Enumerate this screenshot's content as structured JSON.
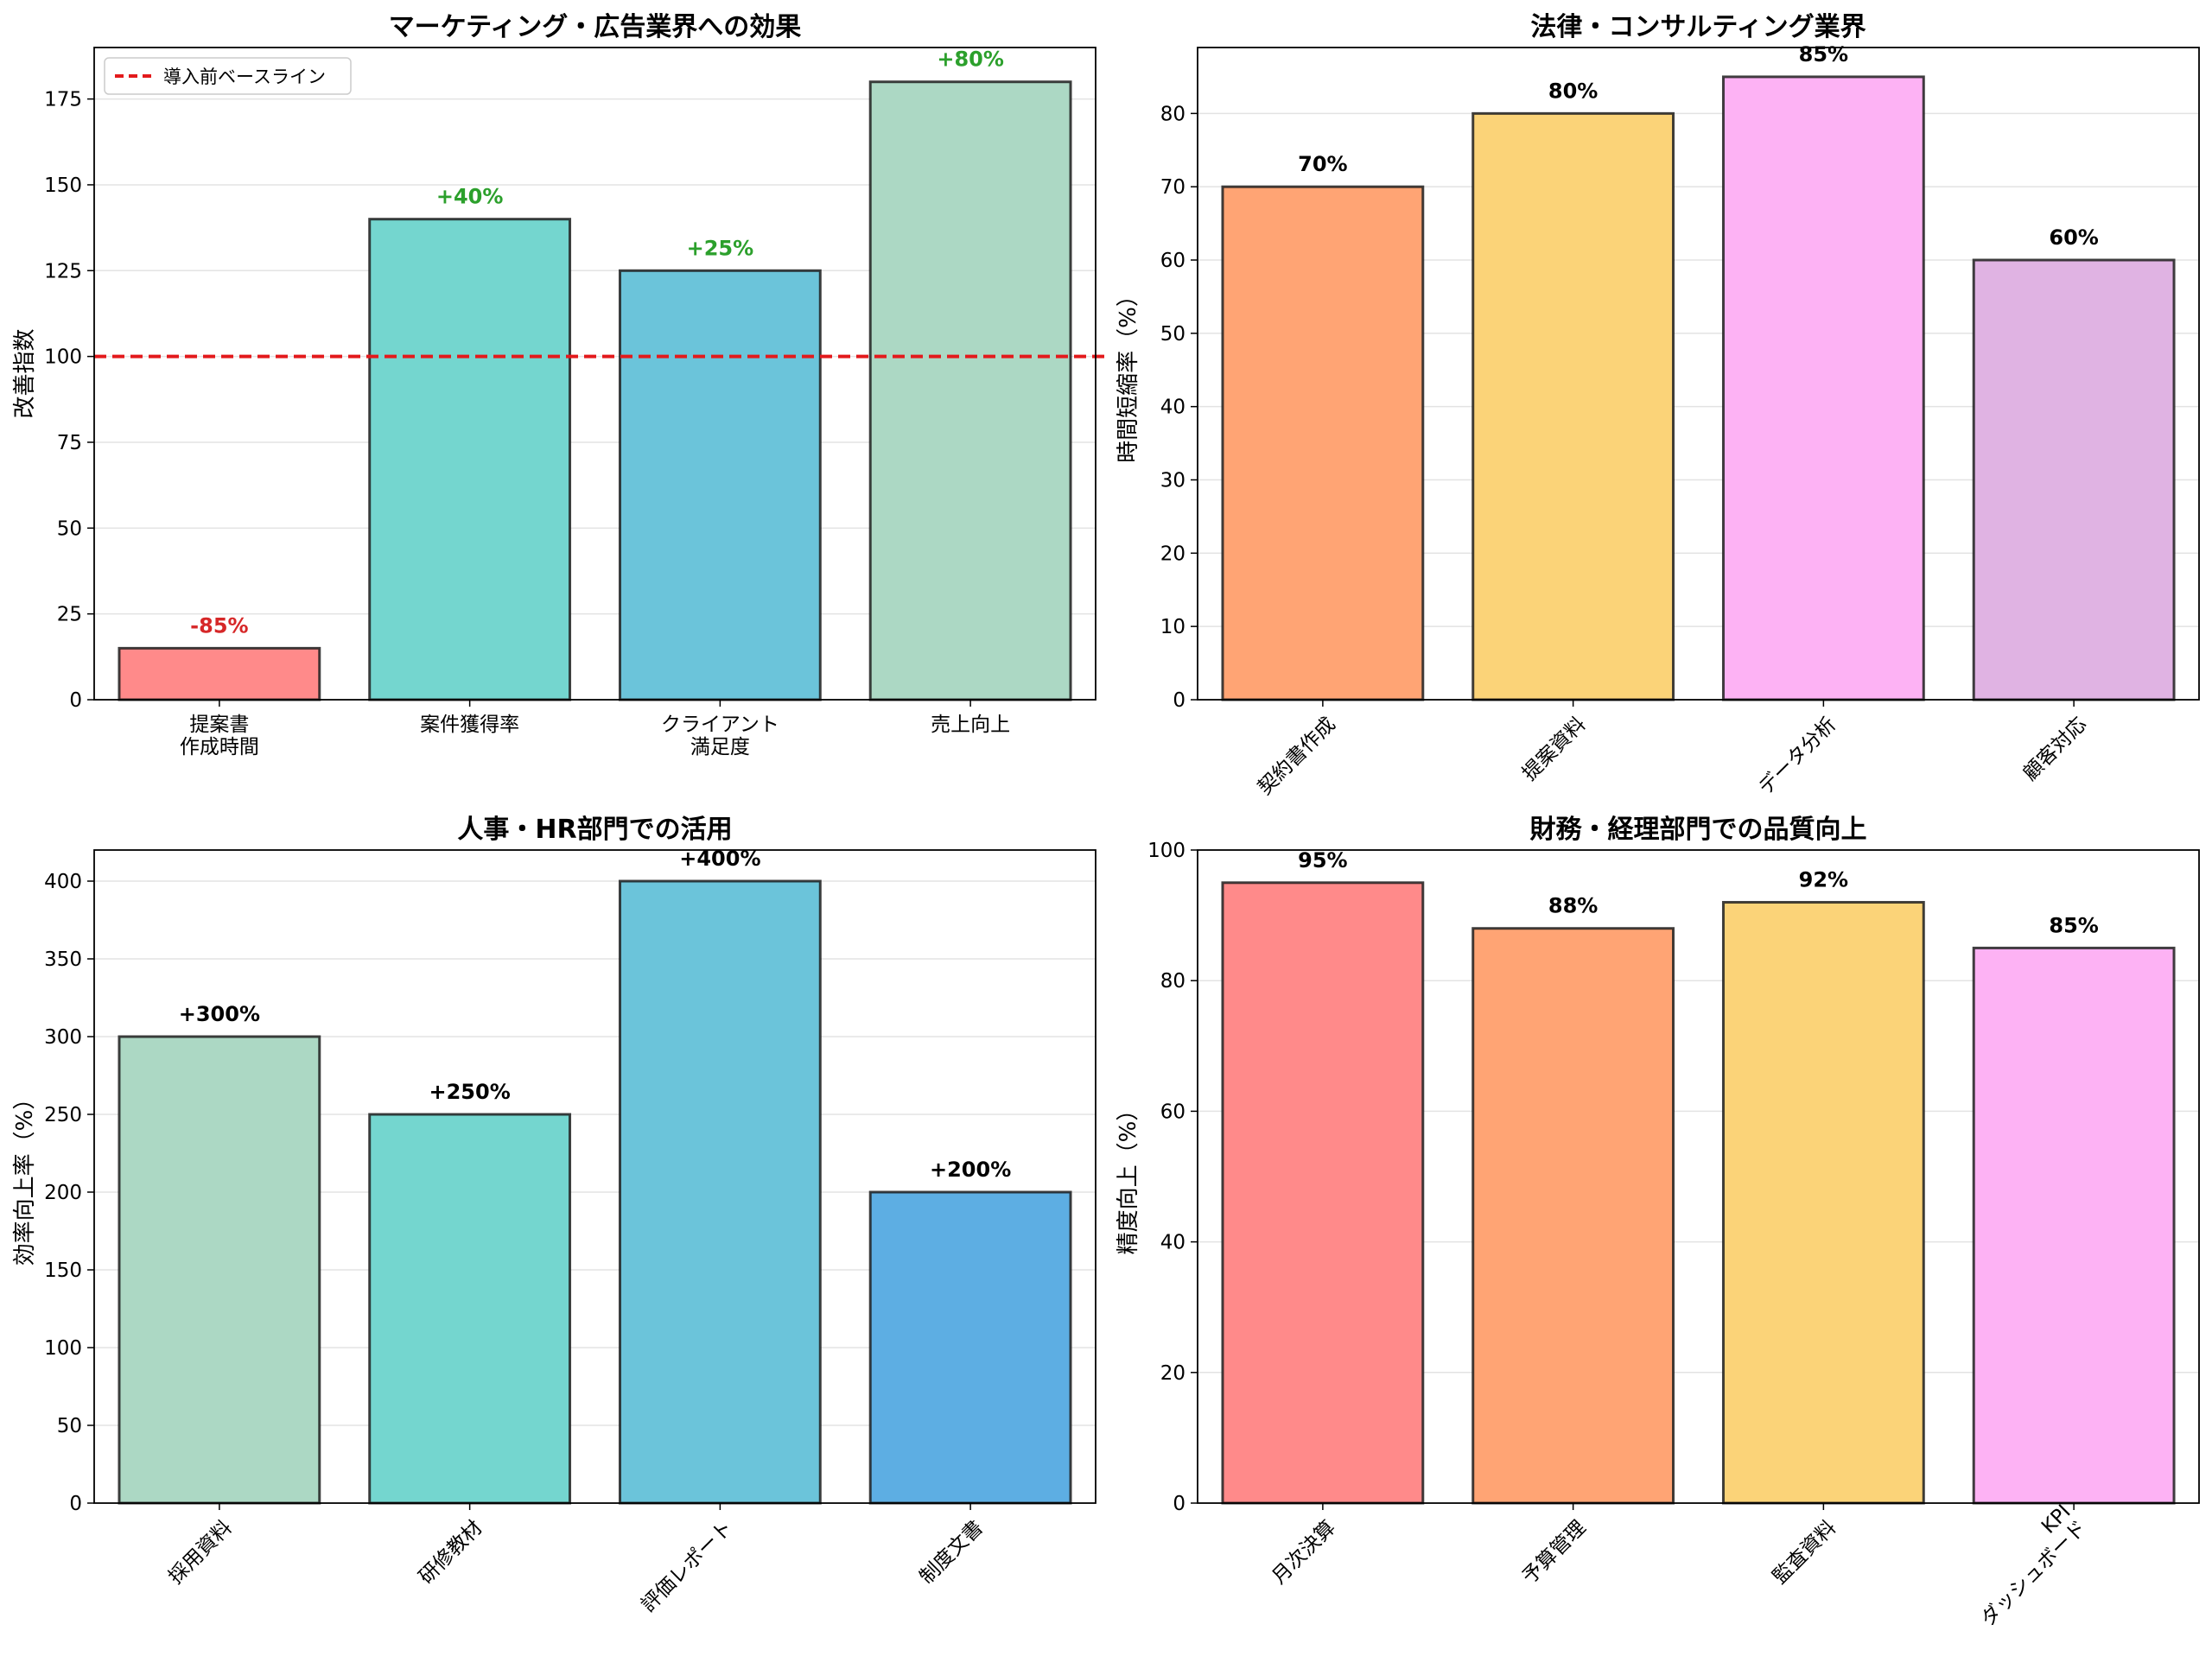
{
  "chart_data": [
    {
      "type": "bar",
      "title": "マーケティング・広告業界への効果",
      "ylabel": "改善指数",
      "xlabel": "",
      "categories": [
        [
          "提案書",
          "作成時間"
        ],
        [
          "案件獲得率"
        ],
        [
          "クライアント",
          "満足度"
        ],
        [
          "売上向上"
        ]
      ],
      "values": [
        15,
        140,
        125,
        180
      ],
      "labels": [
        "-85%",
        "+40%",
        "+25%",
        "+80%"
      ],
      "label_colors": [
        "#d62728",
        "#2ca02c",
        "#2ca02c",
        "#2ca02c"
      ],
      "colors": [
        "#ff8a8a",
        "#74d6cf",
        "#6bc4da",
        "#acd8c4"
      ],
      "ylim": [
        0,
        190
      ],
      "yticks": [
        0,
        25,
        50,
        75,
        100,
        125,
        150,
        175
      ],
      "rotate_xticks": false,
      "baseline": {
        "value": 100,
        "label": "導入前ベースライン",
        "color": "#e31a1c"
      },
      "legend": "top-left",
      "grid": true
    },
    {
      "type": "bar",
      "title": "法律・コンサルティング業界",
      "ylabel": "時間短縮率（%）",
      "xlabel": "",
      "categories": [
        [
          "契約書作成"
        ],
        [
          "提案資料"
        ],
        [
          "データ分析"
        ],
        [
          "顧客対応"
        ]
      ],
      "values": [
        70,
        80,
        85,
        60
      ],
      "labels": [
        "70%",
        "80%",
        "85%",
        "60%"
      ],
      "label_colors": [
        "#000000",
        "#000000",
        "#000000",
        "#000000"
      ],
      "colors": [
        "#ffa474",
        "#fbd378",
        "#fdb2f4",
        "#e0b3e3"
      ],
      "ylim": [
        0,
        89
      ],
      "yticks": [
        0,
        10,
        20,
        30,
        40,
        50,
        60,
        70,
        80
      ],
      "rotate_xticks": true,
      "grid": true
    },
    {
      "type": "bar",
      "title": "人事・HR部門での活用",
      "ylabel": "効率向上率（%）",
      "xlabel": "",
      "categories": [
        [
          "採用資料"
        ],
        [
          "研修教材"
        ],
        [
          "評価レポート"
        ],
        [
          "制度文書"
        ]
      ],
      "values": [
        300,
        250,
        400,
        200
      ],
      "labels": [
        "+300%",
        "+250%",
        "+400%",
        "+200%"
      ],
      "label_colors": [
        "#000000",
        "#000000",
        "#000000",
        "#000000"
      ],
      "colors": [
        "#acd8c4",
        "#74d6cf",
        "#6bc4da",
        "#5daee3"
      ],
      "ylim": [
        0,
        420
      ],
      "yticks": [
        0,
        50,
        100,
        150,
        200,
        250,
        300,
        350,
        400
      ],
      "rotate_xticks": true,
      "grid": true
    },
    {
      "type": "bar",
      "title": "財務・経理部門での品質向上",
      "ylabel": "精度向上（%）",
      "xlabel": "",
      "categories": [
        [
          "月次決算"
        ],
        [
          "予算管理"
        ],
        [
          "監査資料"
        ],
        [
          "KPI",
          "ダッシュボード"
        ]
      ],
      "values": [
        95,
        88,
        92,
        85
      ],
      "labels": [
        "95%",
        "88%",
        "92%",
        "85%"
      ],
      "label_colors": [
        "#000000",
        "#000000",
        "#000000",
        "#000000"
      ],
      "colors": [
        "#ff8a8a",
        "#ffa474",
        "#fbd378",
        "#fdb2f4"
      ],
      "ylim": [
        0,
        100
      ],
      "yticks": [
        0,
        20,
        40,
        60,
        80,
        100
      ],
      "rotate_xticks": true,
      "grid": true
    }
  ]
}
